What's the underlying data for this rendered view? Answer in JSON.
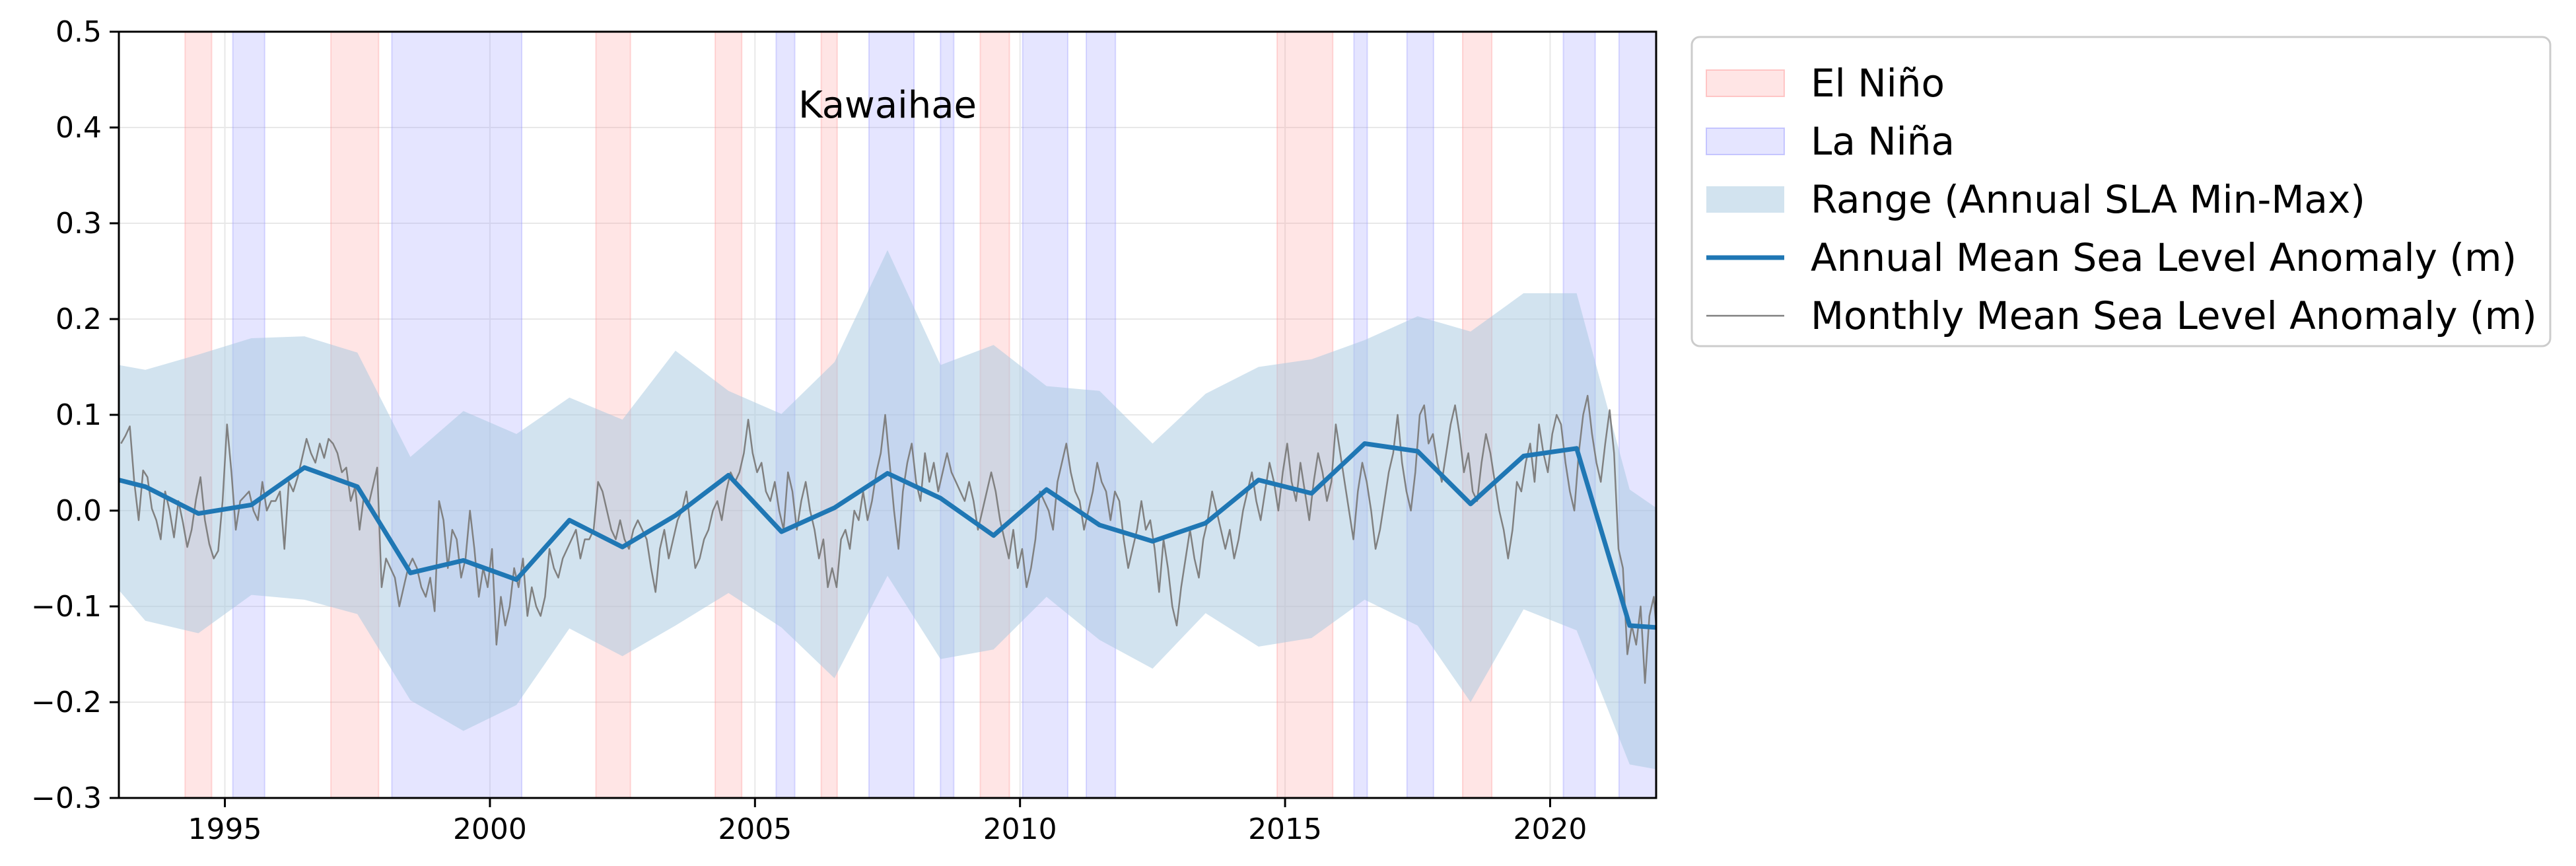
{
  "chart_data": {
    "type": "line",
    "title": "Kawaihae",
    "xlabel": "",
    "ylabel": "",
    "xlim": [
      1993,
      2022
    ],
    "ylim": [
      -0.3,
      0.5
    ],
    "xticks": [
      1995,
      2000,
      2005,
      2010,
      2015,
      2020
    ],
    "yticks": [
      -0.3,
      -0.2,
      -0.1,
      0.0,
      0.1,
      0.2,
      0.3,
      0.4,
      0.5
    ],
    "ytick_labels": [
      "−0.3",
      "−0.2",
      "−0.1",
      "0.0",
      "0.1",
      "0.2",
      "0.3",
      "0.4",
      "0.5"
    ],
    "grid": true,
    "legend_position": "outside-right-top",
    "colors": {
      "el_nino": "#ff9999",
      "la_nina": "#9999ff",
      "range": "#a6c8e0",
      "annual": "#1f77b4",
      "monthly": "#808080"
    },
    "legend": [
      {
        "key": "el_nino",
        "label": "El Niño"
      },
      {
        "key": "la_nina",
        "label": "La Niña"
      },
      {
        "key": "range",
        "label": "Range (Annual SLA Min-Max)"
      },
      {
        "key": "annual",
        "label": "Annual Mean Sea Level Anomaly (m)"
      },
      {
        "key": "monthly",
        "label": "Monthly Mean Sea Level Anomaly (m)"
      }
    ],
    "el_nino_periods": [
      [
        1994.25,
        1994.75
      ],
      [
        1997.0,
        1997.9
      ],
      [
        2002.0,
        2002.65
      ],
      [
        2004.25,
        2004.75
      ],
      [
        2006.25,
        2006.55
      ],
      [
        2009.25,
        2009.8
      ],
      [
        2014.85,
        2015.9
      ],
      [
        2018.35,
        2018.9
      ]
    ],
    "la_nina_periods": [
      [
        1995.15,
        1995.75
      ],
      [
        1998.15,
        2000.6
      ],
      [
        2005.4,
        2005.75
      ],
      [
        2007.15,
        2008.0
      ],
      [
        2008.5,
        2008.75
      ],
      [
        2010.05,
        2010.9
      ],
      [
        2011.25,
        2011.8
      ],
      [
        2016.3,
        2016.55
      ],
      [
        2017.3,
        2017.8
      ],
      [
        2020.25,
        2020.85
      ],
      [
        2021.3,
        2022.0
      ]
    ],
    "range_band": {
      "x": [
        1993,
        1993.5,
        1994.5,
        1995.5,
        1996.5,
        1997.5,
        1998.5,
        1999.5,
        2000.5,
        2001.5,
        2002.5,
        2003.5,
        2004.5,
        2005.5,
        2006.5,
        2007.5,
        2008.5,
        2009.5,
        2010.5,
        2011.5,
        2012.5,
        2013.5,
        2014.5,
        2015.5,
        2016.5,
        2017.5,
        2018.5,
        2019.5,
        2020.5,
        2021.5,
        2022
      ],
      "max": [
        0.152,
        0.147,
        0.163,
        0.18,
        0.182,
        0.165,
        0.056,
        0.104,
        0.08,
        0.118,
        0.095,
        0.167,
        0.125,
        0.101,
        0.155,
        0.272,
        0.152,
        0.173,
        0.13,
        0.125,
        0.07,
        0.122,
        0.15,
        0.158,
        0.178,
        0.203,
        0.187,
        0.227,
        0.227,
        0.022,
        0.003
      ],
      "min": [
        -0.083,
        -0.115,
        -0.128,
        -0.088,
        -0.093,
        -0.108,
        -0.198,
        -0.23,
        -0.203,
        -0.123,
        -0.152,
        -0.12,
        -0.086,
        -0.122,
        -0.175,
        -0.068,
        -0.155,
        -0.145,
        -0.09,
        -0.135,
        -0.165,
        -0.107,
        -0.142,
        -0.133,
        -0.093,
        -0.12,
        -0.2,
        -0.103,
        -0.125,
        -0.265,
        -0.27
      ]
    },
    "series": [
      {
        "key": "annual",
        "name": "Annual Mean Sea Level Anomaly (m)",
        "x": [
          1993,
          1993.5,
          1994.5,
          1995.5,
          1996.5,
          1997.5,
          1998.5,
          1999.5,
          2000.5,
          2001.5,
          2002.5,
          2003.5,
          2004.5,
          2005.5,
          2006.5,
          2007.5,
          2008.5,
          2009.5,
          2010.5,
          2011.5,
          2012.5,
          2013.5,
          2014.5,
          2015.5,
          2016.5,
          2017.5,
          2018.5,
          2019.5,
          2020.5,
          2021.5,
          2022
        ],
        "values": [
          0.032,
          0.025,
          -0.003,
          0.006,
          0.045,
          0.025,
          -0.065,
          -0.052,
          -0.072,
          -0.01,
          -0.038,
          -0.005,
          0.037,
          -0.022,
          0.003,
          0.039,
          0.013,
          -0.026,
          0.022,
          -0.015,
          -0.032,
          -0.013,
          0.032,
          0.018,
          0.07,
          0.062,
          0.007,
          0.057,
          0.065,
          -0.12,
          -0.122
        ]
      },
      {
        "key": "monthly",
        "name": "Monthly Mean Sea Level Anomaly (m)",
        "x_start": 1993.04,
        "x_step": 0.0833333,
        "values": [
          0.07,
          0.078,
          0.088,
          0.03,
          -0.01,
          0.042,
          0.035,
          0.002,
          -0.01,
          -0.03,
          0.02,
          0.0,
          -0.028,
          0.01,
          -0.012,
          -0.038,
          -0.02,
          0.012,
          0.035,
          -0.01,
          -0.035,
          -0.05,
          -0.042,
          0.01,
          0.09,
          0.04,
          -0.02,
          0.01,
          0.015,
          0.02,
          0.0,
          -0.01,
          0.03,
          0.0,
          0.01,
          0.01,
          0.02,
          -0.04,
          0.03,
          0.02,
          0.035,
          0.055,
          0.075,
          0.06,
          0.05,
          0.07,
          0.055,
          0.075,
          0.07,
          0.06,
          0.04,
          0.045,
          0.01,
          0.025,
          -0.02,
          0.015,
          0.005,
          0.025,
          0.045,
          -0.08,
          -0.05,
          -0.06,
          -0.07,
          -0.1,
          -0.08,
          -0.06,
          -0.05,
          -0.06,
          -0.08,
          -0.09,
          -0.07,
          -0.105,
          0.01,
          -0.01,
          -0.06,
          -0.02,
          -0.03,
          -0.07,
          -0.05,
          0.0,
          -0.04,
          -0.09,
          -0.06,
          -0.08,
          -0.04,
          -0.14,
          -0.09,
          -0.12,
          -0.1,
          -0.06,
          -0.08,
          -0.05,
          -0.11,
          -0.08,
          -0.1,
          -0.11,
          -0.09,
          -0.04,
          -0.06,
          -0.07,
          -0.05,
          -0.04,
          -0.03,
          -0.02,
          -0.05,
          -0.03,
          -0.03,
          -0.02,
          0.03,
          0.02,
          0.0,
          -0.02,
          -0.03,
          -0.01,
          -0.03,
          -0.04,
          -0.02,
          -0.01,
          -0.02,
          -0.03,
          -0.06,
          -0.085,
          -0.04,
          -0.02,
          -0.05,
          -0.03,
          -0.01,
          0.0,
          0.02,
          -0.02,
          -0.06,
          -0.05,
          -0.03,
          -0.02,
          0.0,
          0.01,
          -0.01,
          0.02,
          0.04,
          0.03,
          0.04,
          0.06,
          0.095,
          0.06,
          0.04,
          0.05,
          0.02,
          0.01,
          0.03,
          0.0,
          -0.02,
          0.04,
          0.02,
          -0.02,
          0.01,
          0.03,
          0.0,
          -0.02,
          -0.05,
          -0.03,
          -0.08,
          -0.06,
          -0.08,
          -0.03,
          -0.02,
          -0.04,
          0.0,
          -0.01,
          0.02,
          -0.01,
          0.01,
          0.04,
          0.06,
          0.1,
          0.05,
          0.0,
          -0.04,
          0.02,
          0.05,
          0.07,
          0.03,
          0.01,
          0.06,
          0.03,
          0.05,
          0.02,
          0.04,
          0.06,
          0.04,
          0.03,
          0.02,
          0.01,
          0.03,
          0.01,
          -0.02,
          0.0,
          0.02,
          0.04,
          0.02,
          -0.01,
          -0.03,
          -0.05,
          -0.02,
          -0.06,
          -0.04,
          -0.08,
          -0.06,
          -0.03,
          0.02,
          0.01,
          0.0,
          -0.02,
          0.03,
          0.05,
          0.07,
          0.04,
          0.02,
          0.01,
          -0.02,
          0.0,
          0.02,
          0.05,
          0.03,
          0.02,
          -0.01,
          0.02,
          0.01,
          -0.03,
          -0.06,
          -0.04,
          -0.02,
          0.01,
          -0.02,
          -0.01,
          -0.04,
          -0.085,
          -0.03,
          -0.06,
          -0.1,
          -0.12,
          -0.08,
          -0.05,
          -0.02,
          -0.05,
          -0.07,
          -0.03,
          -0.01,
          0.02,
          0.0,
          -0.02,
          -0.04,
          -0.02,
          -0.05,
          -0.03,
          0.0,
          0.02,
          0.04,
          0.01,
          -0.01,
          0.02,
          0.05,
          0.03,
          0.0,
          0.04,
          0.07,
          0.03,
          0.01,
          0.05,
          0.02,
          -0.01,
          0.03,
          0.06,
          0.04,
          0.01,
          0.03,
          0.09,
          0.06,
          0.03,
          0.0,
          -0.03,
          0.02,
          0.05,
          0.03,
          0.0,
          -0.04,
          -0.02,
          0.01,
          0.04,
          0.06,
          0.1,
          0.05,
          0.02,
          0.0,
          0.04,
          0.1,
          0.11,
          0.07,
          0.08,
          0.05,
          0.03,
          0.06,
          0.09,
          0.11,
          0.08,
          0.04,
          0.06,
          0.02,
          0.01,
          0.05,
          0.08,
          0.06,
          0.03,
          0.0,
          -0.02,
          -0.05,
          -0.02,
          0.03,
          0.02,
          0.05,
          0.07,
          0.03,
          0.09,
          0.06,
          0.04,
          0.08,
          0.1,
          0.09,
          0.05,
          0.02,
          0.0,
          0.06,
          0.1,
          0.12,
          0.08,
          0.05,
          0.03,
          0.07,
          0.105,
          0.06,
          -0.04,
          -0.06,
          -0.15,
          -0.12,
          -0.14,
          -0.1,
          -0.18,
          -0.11,
          -0.09,
          -0.12,
          -0.13,
          -0.08,
          -0.12,
          -0.18,
          -0.11
        ]
      }
    ]
  }
}
